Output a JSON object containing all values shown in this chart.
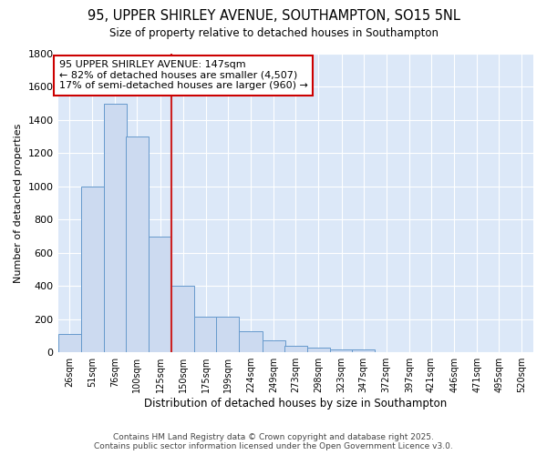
{
  "title_line1": "95, UPPER SHIRLEY AVENUE, SOUTHAMPTON, SO15 5NL",
  "title_line2": "Size of property relative to detached houses in Southampton",
  "xlabel": "Distribution of detached houses by size in Southampton",
  "ylabel": "Number of detached properties",
  "bins": [
    26,
    51,
    76,
    100,
    125,
    150,
    175,
    199,
    224,
    249,
    273,
    298,
    323,
    347,
    372,
    397,
    421,
    446,
    471,
    495,
    520
  ],
  "values": [
    110,
    1000,
    1500,
    1300,
    700,
    400,
    215,
    215,
    130,
    70,
    40,
    30,
    15,
    15,
    0,
    0,
    0,
    0,
    0,
    0,
    0
  ],
  "bar_color": "#ccdaf0",
  "bar_edge_color": "#6699cc",
  "background_color": "#dce8f8",
  "grid_color": "#ffffff",
  "red_line_x": 150,
  "annotation_title": "95 UPPER SHIRLEY AVENUE: 147sqm",
  "annotation_line1": "← 82% of detached houses are smaller (4,507)",
  "annotation_line2": "17% of semi-detached houses are larger (960) →",
  "annotation_box_color": "#ffffff",
  "annotation_box_edge": "#cc0000",
  "red_line_color": "#cc2222",
  "footer_line1": "Contains HM Land Registry data © Crown copyright and database right 2025.",
  "footer_line2": "Contains public sector information licensed under the Open Government Licence v3.0.",
  "ylim": [
    0,
    1800
  ],
  "yticks": [
    0,
    200,
    400,
    600,
    800,
    1000,
    1200,
    1400,
    1600,
    1800
  ],
  "fig_bg": "#ffffff"
}
